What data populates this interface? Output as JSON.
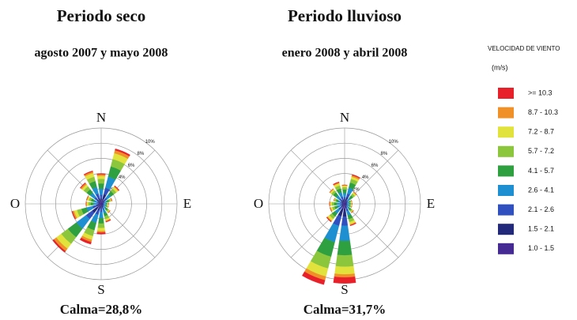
{
  "legend": {
    "title": "VELOCIDAD DE VIENTO",
    "unit": "(m/s)"
  },
  "chart_data": [
    {
      "type": "windrose",
      "title": "Periodo seco",
      "subtitle": "agosto 2007 y mayo  2008",
      "footer": "Calma=28,8%",
      "categories": [
        "N",
        null,
        null,
        null,
        "E",
        null,
        null,
        null,
        "S",
        null,
        null,
        null,
        "O",
        null,
        null,
        null
      ],
      "rlim": [
        0,
        10
      ],
      "rticks": [
        {
          "value": 2,
          "label": "2%"
        },
        {
          "value": 4,
          "label": "4%"
        },
        {
          "value": 6,
          "label": "6%"
        },
        {
          "value": 8,
          "label": "8%"
        },
        {
          "value": 10,
          "label": "10%"
        }
      ],
      "series": [
        {
          "name": ">= 10.3",
          "color": "#e8202a",
          "values": [
            0.1,
            0.2,
            0.1,
            0,
            0,
            0,
            0,
            0.1,
            0.2,
            0.3,
            0.2,
            0.1,
            0,
            0,
            0.1,
            0.1
          ]
        },
        {
          "name": "8.7 - 10.3",
          "color": "#f09028",
          "values": [
            0.2,
            0.4,
            0.1,
            0.1,
            0,
            0,
            0.1,
            0.1,
            0.2,
            0.3,
            0.4,
            0.2,
            0.1,
            0.1,
            0.2,
            0.2
          ]
        },
        {
          "name": "7.2 -  8.7",
          "color": "#e2e23c",
          "values": [
            0.4,
            0.8,
            0.3,
            0.1,
            0.1,
            0.1,
            0.1,
            0.2,
            0.4,
            0.5,
            0.8,
            0.4,
            0.2,
            0.2,
            0.3,
            0.5
          ]
        },
        {
          "name": "5.7 -  7.2",
          "color": "#8cc63c",
          "values": [
            0.6,
            1.0,
            0.4,
            0.2,
            0.1,
            0.1,
            0.2,
            0.4,
            0.6,
            0.8,
            1.1,
            0.6,
            0.3,
            0.3,
            0.5,
            0.6
          ]
        },
        {
          "name": "4.1 -  5.7",
          "color": "#2ea040",
          "values": [
            0.7,
            1.4,
            0.5,
            0.3,
            0.2,
            0.2,
            0.3,
            0.4,
            0.7,
            1.0,
            1.4,
            0.7,
            0.4,
            0.4,
            0.6,
            0.8
          ]
        },
        {
          "name": "2.6 -  4.1",
          "color": "#1e8fd0",
          "values": [
            0.8,
            1.5,
            0.6,
            0.3,
            0.2,
            0.2,
            0.3,
            0.5,
            0.8,
            1.1,
            1.6,
            0.8,
            0.4,
            0.4,
            0.7,
            0.9
          ]
        },
        {
          "name": "2.1 -  2.6",
          "color": "#3050c0",
          "values": [
            0.5,
            0.9,
            0.4,
            0.2,
            0.1,
            0.1,
            0.2,
            0.3,
            0.5,
            0.6,
            1.0,
            0.5,
            0.2,
            0.2,
            0.4,
            0.6
          ]
        },
        {
          "name": "1.5 -  2.1",
          "color": "#22287a",
          "values": [
            0.4,
            0.7,
            0.3,
            0.2,
            0.2,
            0.2,
            0.2,
            0.3,
            0.3,
            0.5,
            0.8,
            0.4,
            0.2,
            0.2,
            0.4,
            0.4
          ]
        },
        {
          "name": "1.0 -  1.5",
          "color": "#442a92",
          "values": [
            0.3,
            0.6,
            0.3,
            0.1,
            0.1,
            0.1,
            0.1,
            0.2,
            0.3,
            0.4,
            0.7,
            0.3,
            0.2,
            0.2,
            0.3,
            0.4
          ]
        }
      ]
    },
    {
      "type": "windrose",
      "title": "Periodo lluvioso",
      "subtitle": "enero 2008 y abril  2008",
      "footer": "Calma=31,7%",
      "categories": [
        "N",
        null,
        null,
        null,
        "E",
        null,
        null,
        null,
        "S",
        null,
        null,
        null,
        "O",
        null,
        null,
        null
      ],
      "rlim": [
        0,
        10
      ],
      "rticks": [
        {
          "value": 2,
          "label": "2%"
        },
        {
          "value": 4,
          "label": "4%"
        },
        {
          "value": 6,
          "label": "6%"
        },
        {
          "value": 8,
          "label": "8%"
        },
        {
          "value": 10,
          "label": "10%"
        }
      ],
      "series": [
        {
          "color": "#e8202a",
          "values": [
            0,
            0.1,
            0,
            0,
            0,
            0,
            0,
            0.1,
            0.8,
            0.6,
            0.1,
            0,
            0,
            0,
            0,
            0.1
          ]
        },
        {
          "color": "#f09028",
          "values": [
            0.1,
            0.2,
            0.1,
            0,
            0,
            0,
            0.1,
            0.1,
            0.4,
            0.5,
            0.1,
            0.1,
            0.1,
            0,
            0.1,
            0.1
          ]
        },
        {
          "color": "#e2e23c",
          "values": [
            0.2,
            0.3,
            0.2,
            0.1,
            0.1,
            0.1,
            0.1,
            0.3,
            1.0,
            1.1,
            0.3,
            0.2,
            0.2,
            0.1,
            0.2,
            0.3
          ]
        },
        {
          "color": "#8cc63c",
          "values": [
            0.3,
            0.5,
            0.3,
            0.1,
            0.1,
            0.1,
            0.2,
            0.4,
            1.5,
            1.6,
            0.4,
            0.3,
            0.3,
            0.2,
            0.3,
            0.4
          ]
        },
        {
          "color": "#2ea040",
          "values": [
            0.5,
            0.7,
            0.4,
            0.2,
            0.2,
            0.2,
            0.3,
            0.5,
            1.9,
            2.0,
            0.5,
            0.4,
            0.4,
            0.3,
            0.5,
            0.5
          ]
        },
        {
          "color": "#1e8fd0",
          "values": [
            0.5,
            0.8,
            0.4,
            0.2,
            0.2,
            0.2,
            0.3,
            0.6,
            2.0,
            2.2,
            0.6,
            0.4,
            0.4,
            0.3,
            0.5,
            0.6
          ]
        },
        {
          "color": "#3050c0",
          "values": [
            0.3,
            0.5,
            0.2,
            0.1,
            0.1,
            0.1,
            0.2,
            0.4,
            1.2,
            1.3,
            0.4,
            0.2,
            0.2,
            0.2,
            0.3,
            0.4
          ]
        },
        {
          "color": "#22287a",
          "values": [
            0.3,
            0.5,
            0.2,
            0.2,
            0.2,
            0.2,
            0.2,
            0.3,
            1.0,
            1.0,
            0.3,
            0.2,
            0.2,
            0.2,
            0.3,
            0.3
          ]
        },
        {
          "color": "#442a92",
          "values": [
            0.3,
            0.4,
            0.2,
            0.1,
            0.1,
            0.1,
            0.1,
            0.3,
            0.7,
            0.7,
            0.3,
            0.2,
            0.2,
            0.2,
            0.3,
            0.3
          ]
        }
      ]
    }
  ]
}
